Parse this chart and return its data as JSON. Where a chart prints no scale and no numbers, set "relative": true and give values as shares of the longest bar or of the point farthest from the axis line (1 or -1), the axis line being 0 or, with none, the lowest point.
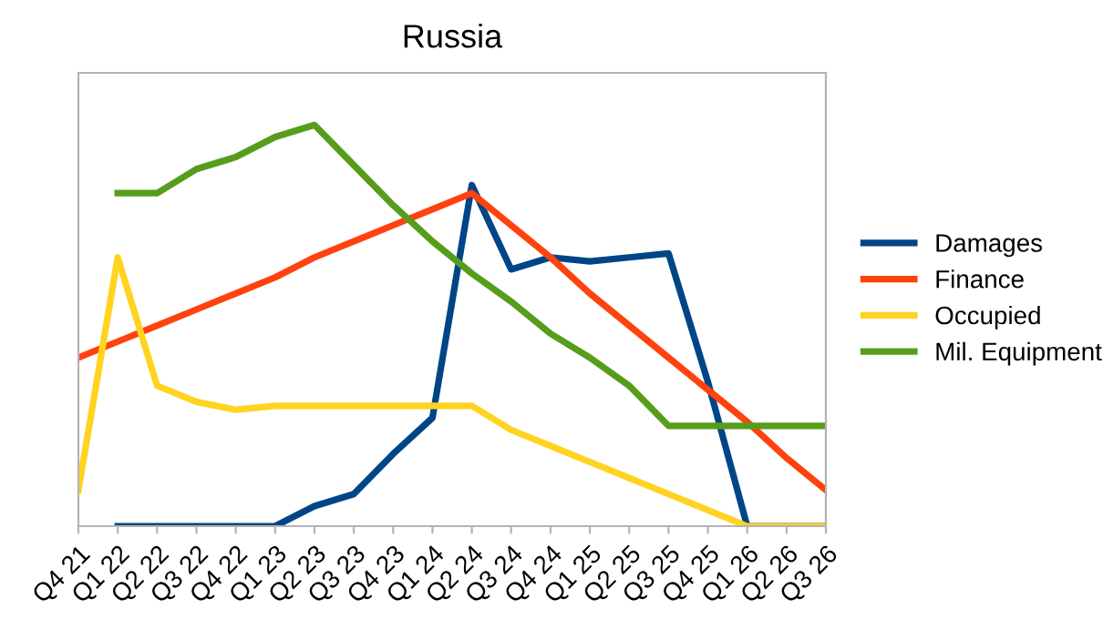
{
  "chart_data": {
    "type": "line",
    "title": "Russia",
    "relative": true,
    "legend": "right",
    "grid": false,
    "marker": "none",
    "line_style": "solid",
    "categories": [
      "Q4 21",
      "Q1 22",
      "Q2 22",
      "Q3 22",
      "Q4 22",
      "Q1 23",
      "Q2 23",
      "Q3 23",
      "Q4 23",
      "Q1 24",
      "Q2 24",
      "Q3 24",
      "Q4 24",
      "Q1 25",
      "Q2 25",
      "Q3 25",
      "Q4 25",
      "Q1 26",
      "Q2 26",
      "Q3 26"
    ],
    "series": [
      {
        "name": "Damages",
        "color": "#004586",
        "values": [
          null,
          0,
          0,
          0,
          0,
          0,
          0.05,
          0.08,
          0.18,
          0.27,
          0.85,
          0.64,
          0.67,
          0.66,
          0.67,
          0.68,
          0.36,
          0,
          0,
          0
        ]
      },
      {
        "name": "Finance",
        "color": "#ff420e",
        "values": [
          0.42,
          0.46,
          0.5,
          0.54,
          0.58,
          0.62,
          0.67,
          0.71,
          0.75,
          0.79,
          0.83,
          0.75,
          0.67,
          0.58,
          0.5,
          0.42,
          0.34,
          0.26,
          0.17,
          0.09
        ]
      },
      {
        "name": "Occupied",
        "color": "#ffd320",
        "values": [
          0.09,
          0.67,
          0.35,
          0.31,
          0.29,
          0.3,
          0.3,
          0.3,
          0.3,
          0.3,
          0.3,
          0.24,
          0.2,
          0.16,
          0.12,
          0.08,
          0.04,
          0,
          0,
          0
        ]
      },
      {
        "name": "Mil. Equipment",
        "color": "#579d1c",
        "values": [
          null,
          0.83,
          0.83,
          0.89,
          0.92,
          0.97,
          1.0,
          0.9,
          0.8,
          0.71,
          0.63,
          0.56,
          0.48,
          0.42,
          0.35,
          0.25,
          0.25,
          0.25,
          0.25,
          0.25
        ]
      }
    ]
  }
}
